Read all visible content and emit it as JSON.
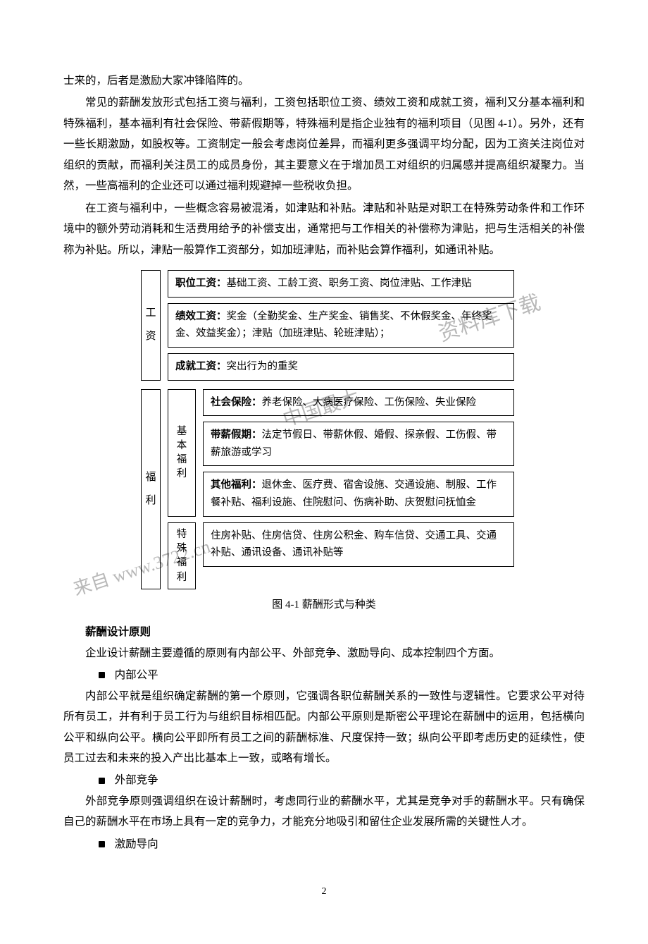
{
  "intro": {
    "p0": "士来的，后者是激励大家冲锋陷阵的。",
    "p1": "常见的薪酬发放形式包括工资与福利，工资包括职位工资、绩效工资和成就工资，福利又分基本福利和特殊福利，基本福利有社会保险、带薪假期等，特殊福利是指企业独有的福利项目（见图 4-1）。另外，还有一些长期激励，如股权等。工资制定一般会考虑岗位差异，而福利更多强调平均分配，因为工资关注岗位对组织的贡献，而福利关注员工的成员身份，其主要意义在于增加员工对组织的归属感并提高组织凝聚力。当然，一些高福利的企业还可以通过福利规避掉一些税收负担。",
    "p2": "在工资与福利中，一些概念容易被混淆，如津贴和补贴。津贴和补贴是对职工在特殊劳动条件和工作环境中的额外劳动消耗和生活费用给予的补偿支出，通常把与工作相关的补偿称为津贴，把与生活相关的补偿称为补贴。所以，津贴一般算作工资部分，如加班津贴，而补贴会算作福利，如通讯补贴。"
  },
  "diagram": {
    "type": "tree",
    "caption": "图 4-1 薪酬形式与种类",
    "wage_label": "工资",
    "welfare_label": "福利",
    "basic_label": "基本福利",
    "special_label": "特殊福利",
    "box1_lead": "职位工资：",
    "box1_rest": "基础工资、工龄工资、职务工资、岗位津贴、工作津贴",
    "box2_lead": "绩效工资：",
    "box2_rest": "奖金（全勤奖金、生产奖金、销售奖、不休假奖金、年终奖金、效益奖金）；津贴（加班津贴、轮班津贴）；",
    "box3_lead": "成就工资：",
    "box3_rest": "突出行为的重奖",
    "box4_lead": "社会保险：",
    "box4_rest": "养老保险、大病医疗保险、工伤保险、失业保险",
    "box5_lead": "带薪假期：",
    "box5_rest": "法定节假日、带薪休假、婚假、探亲假、工伤假、带薪旅游或学习",
    "box6_lead": "其他福利：",
    "box6_rest": "退休金、医疗费、宿舍设施、交通设施、制服、工作餐补贴、福利设施、住院慰问、伤病补助、庆贺慰问抚恤金",
    "box7_rest": "住房补贴、住房信贷、住房公积金、购车信贷、交通工具、交通补贴、通讯设备、通讯补贴等",
    "watermark1": "资料库下载",
    "watermark2": "中国最大",
    "watermark3": "来自 www.3722.cn"
  },
  "design": {
    "heading": "薪酬设计原则",
    "lead": "企业设计薪酬主要遵循的原则有内部公平、外部竞争、激励导向、成本控制四个方面。",
    "b1": "内部公平",
    "b1_text": "内部公平就是组织确定薪酬的第一个原则，它强调各职位薪酬关系的一致性与逻辑性。它要求公平对待所有员工，并有利于员工行为与组织目标相匹配。内部公平原则是斯密公平理论在薪酬中的运用，包括横向公平和纵向公平。横向公平即所有员工之间的薪酬标准、尺度保持一致；纵向公平即考虑历史的延续性，使员工过去和未来的投入产出比基本上一致，或略有增长。",
    "b2": "外部竞争",
    "b2_text": "外部竞争原则强调组织在设计薪酬时，考虑同行业的薪酬水平，尤其是竞争对手的薪酬水平。只有确保自己的薪酬水平在市场上具有一定的竞争力，才能充分地吸引和留住企业发展所需的关键性人才。",
    "b3": "激励导向"
  },
  "page_number": "2"
}
